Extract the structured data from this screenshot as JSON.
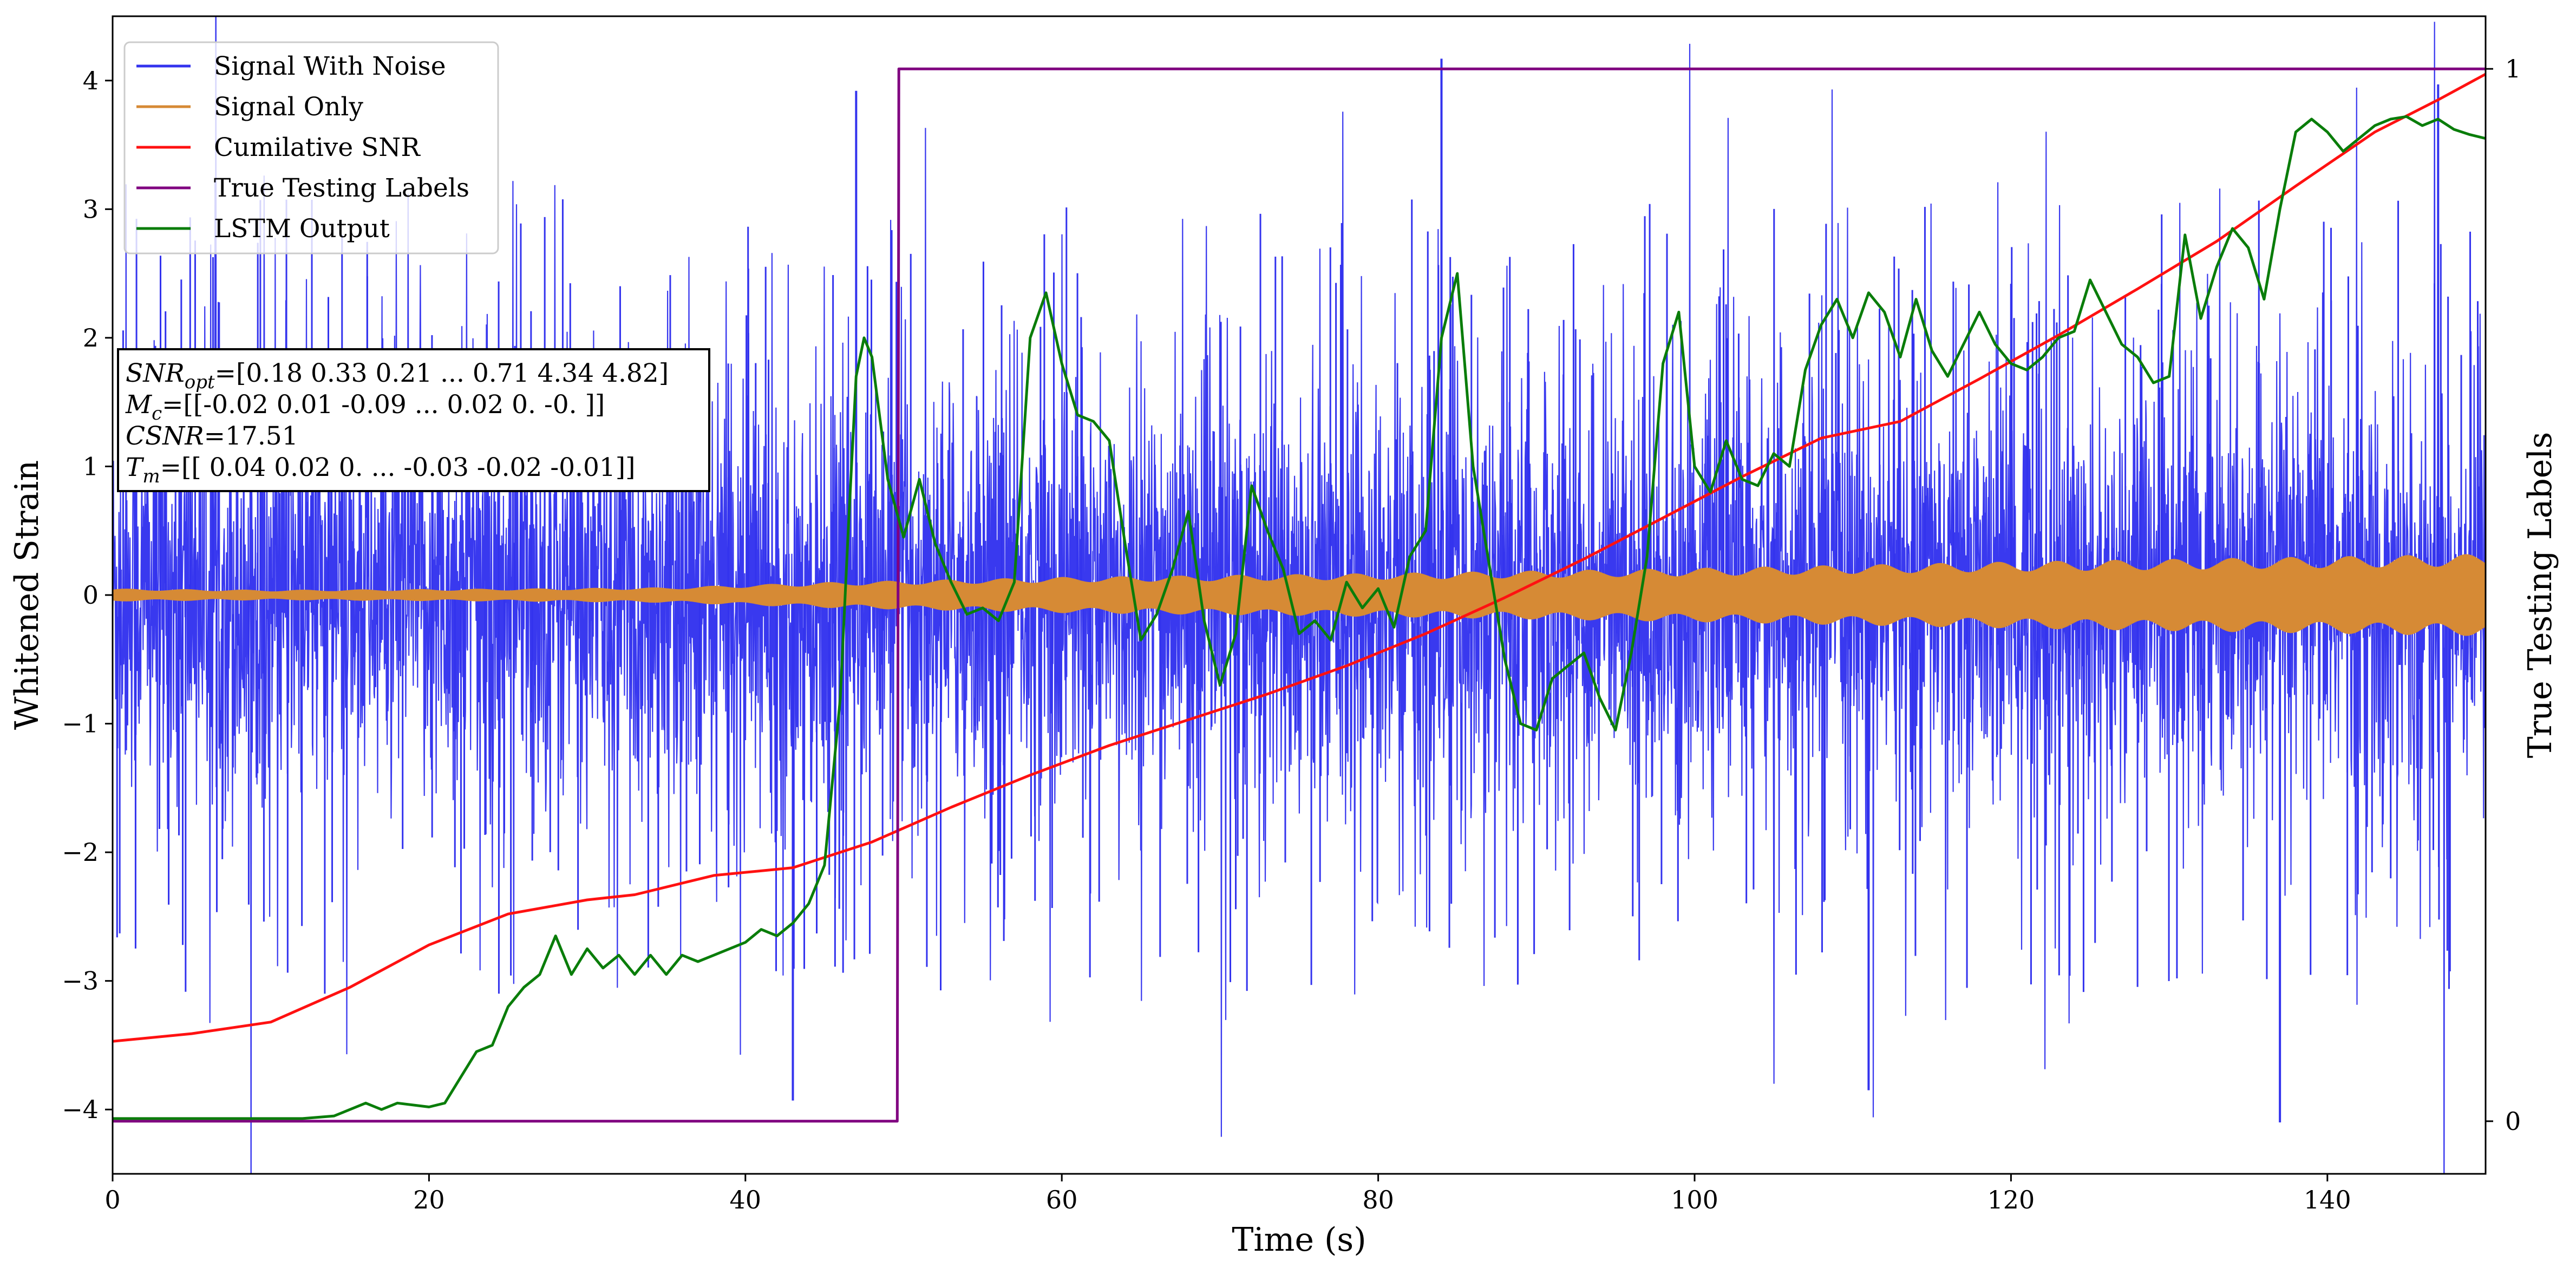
{
  "chart_data": {
    "type": "line",
    "xlabel": "Time (s)",
    "ylabel": "Whitened Strain",
    "y2label": "True Testing Labels",
    "xlim": [
      0,
      150
    ],
    "ylim": [
      -4.5,
      4.5
    ],
    "y2lim": [
      -0.05,
      1.05
    ],
    "x_ticks": [
      0,
      20,
      40,
      60,
      80,
      100,
      120,
      140
    ],
    "y_ticks": [
      -4,
      -3,
      -2,
      -1,
      0,
      1,
      2,
      3,
      4
    ],
    "y2_ticks": [
      0,
      1
    ],
    "grid": false,
    "legend_position": "upper-left",
    "series": [
      {
        "name": "Signal With Noise",
        "color": "#3333ee",
        "axis": "left",
        "style": "dense-noise",
        "envelope_rms": 0.75,
        "notable_peaks": [
          {
            "x": 84,
            "y": 4.17
          },
          {
            "x": 47,
            "y": 3.92
          },
          {
            "x": 147,
            "y": 3.97
          },
          {
            "x": 43,
            "y": -3.93
          },
          {
            "x": 137,
            "y": -4.1
          },
          {
            "x": 111,
            "y": -3.85
          }
        ]
      },
      {
        "name": "Signal Only",
        "color": "#d68a35",
        "axis": "left",
        "style": "chirp-band",
        "amplitude_envelope": {
          "x": [
            0,
            10,
            25,
            35,
            45,
            60,
            80,
            100,
            120,
            140,
            150
          ],
          "y": [
            0.05,
            0.04,
            0.05,
            0.06,
            0.1,
            0.14,
            0.17,
            0.21,
            0.26,
            0.3,
            0.32
          ]
        }
      },
      {
        "name": "Cumilative SNR",
        "color": "#ff1111",
        "axis": "left",
        "x": [
          0,
          5,
          10,
          15,
          20,
          25,
          30,
          33,
          38,
          43,
          48,
          53,
          58,
          63,
          68,
          73,
          78,
          83,
          88,
          93,
          98,
          103,
          108,
          113,
          118,
          123,
          128,
          133,
          138,
          143,
          147,
          150
        ],
        "y": [
          -3.47,
          -3.41,
          -3.32,
          -3.05,
          -2.72,
          -2.48,
          -2.37,
          -2.33,
          -2.18,
          -2.12,
          -1.92,
          -1.65,
          -1.4,
          -1.17,
          -0.97,
          -0.77,
          -0.55,
          -0.3,
          -0.02,
          0.28,
          0.6,
          0.92,
          1.22,
          1.35,
          1.68,
          2.02,
          2.38,
          2.75,
          3.18,
          3.6,
          3.85,
          4.05
        ]
      },
      {
        "name": "True Testing Labels",
        "color": "#800080",
        "axis": "right",
        "x": [
          0,
          49.6,
          49.7,
          150
        ],
        "y": [
          0,
          0,
          1,
          1
        ]
      },
      {
        "name": "LSTM Output",
        "color": "#0a7d0a",
        "axis": "left",
        "x": [
          0,
          12,
          14,
          16,
          17,
          18,
          20,
          21,
          22,
          23,
          24,
          25,
          26,
          27,
          28,
          29,
          30,
          31,
          32,
          33,
          34,
          35,
          36,
          37,
          38,
          39,
          40,
          41,
          42,
          43,
          44,
          45,
          46,
          46.5,
          47,
          47.5,
          48,
          49,
          50,
          51,
          52,
          53,
          54,
          55,
          56,
          57,
          58,
          59,
          60,
          61,
          62,
          63,
          64,
          65,
          66,
          67,
          68,
          69,
          70,
          71,
          72,
          73,
          74,
          75,
          76,
          77,
          78,
          79,
          80,
          81,
          82,
          83,
          84,
          85,
          86,
          87,
          88,
          89,
          90,
          91,
          92,
          93,
          94,
          95,
          96,
          97,
          98,
          99,
          100,
          101,
          102,
          103,
          104,
          105,
          106,
          107,
          108,
          109,
          110,
          111,
          112,
          113,
          114,
          115,
          116,
          117,
          118,
          119,
          120,
          121,
          122,
          123,
          124,
          125,
          126,
          127,
          128,
          129,
          130,
          131,
          132,
          133,
          134,
          135,
          136,
          137,
          138,
          139,
          140,
          141,
          142,
          143,
          144,
          145,
          146,
          147,
          148,
          149,
          150
        ],
        "y": [
          -4.07,
          -4.07,
          -4.05,
          -3.95,
          -4.0,
          -3.95,
          -3.98,
          -3.95,
          -3.75,
          -3.55,
          -3.5,
          -3.2,
          -3.05,
          -2.95,
          -2.65,
          -2.95,
          -2.75,
          -2.9,
          -2.8,
          -2.95,
          -2.8,
          -2.95,
          -2.8,
          -2.85,
          -2.8,
          -2.75,
          -2.7,
          -2.6,
          -2.65,
          -2.55,
          -2.4,
          -2.1,
          -0.8,
          0.5,
          1.7,
          2.0,
          1.85,
          0.9,
          0.45,
          0.9,
          0.4,
          0.1,
          -0.15,
          -0.1,
          -0.2,
          0.1,
          2.0,
          2.35,
          1.8,
          1.4,
          1.35,
          1.2,
          0.4,
          -0.35,
          -0.15,
          0.2,
          0.65,
          -0.2,
          -0.7,
          -0.3,
          0.85,
          0.5,
          0.2,
          -0.3,
          -0.2,
          -0.35,
          0.1,
          -0.1,
          0.05,
          -0.25,
          0.3,
          0.5,
          2.0,
          2.5,
          1.0,
          0.25,
          -0.5,
          -1.0,
          -1.05,
          -0.65,
          -0.55,
          -0.45,
          -0.8,
          -1.05,
          -0.45,
          0.3,
          1.8,
          2.2,
          1.0,
          0.8,
          1.2,
          0.9,
          0.85,
          1.1,
          1.0,
          1.75,
          2.1,
          2.3,
          2.0,
          2.35,
          2.2,
          1.85,
          2.3,
          1.9,
          1.7,
          1.95,
          2.2,
          1.95,
          1.8,
          1.75,
          1.85,
          2.0,
          2.05,
          2.45,
          2.2,
          1.95,
          1.85,
          1.65,
          1.7,
          2.8,
          2.15,
          2.55,
          2.85,
          2.7,
          2.3,
          3.0,
          3.6,
          3.7,
          3.6,
          3.45,
          3.55,
          3.65,
          3.7,
          3.72,
          3.65,
          3.7,
          3.62,
          3.58,
          3.55
        ]
      }
    ],
    "annotation": {
      "lines": [
        {
          "label": "SNR",
          "sub": "opt",
          "value": "=[0.18 0.33 0.21 ... 0.71 4.34 4.82]"
        },
        {
          "label": "M",
          "sub": "c",
          "value": "=[[-0.02  0.01 -0.09 ...  0.02  0.   -0.  ]]"
        },
        {
          "label": "CSNR",
          "sub": "",
          "value": "=17.51"
        },
        {
          "label": "T",
          "sub": "m",
          "value": "=[[ 0.04  0.02  0.   ... -0.03 -0.02 -0.01]]"
        }
      ]
    }
  }
}
